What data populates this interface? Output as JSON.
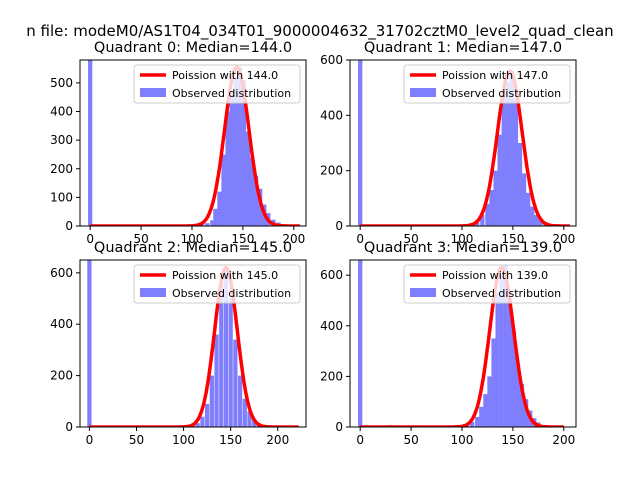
{
  "figure": {
    "suptitle": "n file: modeM0/AS1T04_034T01_9000004632_31702cztM0_level2_quad_clean"
  },
  "colors": {
    "observed": "#7f7ffe",
    "poisson": "#ff0000",
    "axis": "#000000"
  },
  "chart_data": [
    {
      "type": "bar",
      "title": "Quadrant 0: Median=144.0",
      "median": 144.0,
      "xlim": [
        -10,
        212
      ],
      "ylim": [
        0,
        580
      ],
      "xticks": [
        0,
        50,
        100,
        150,
        200
      ],
      "yticks": [
        0,
        100,
        200,
        300,
        400,
        500
      ],
      "legend": {
        "placement": "top-right",
        "entries": [
          "Poission with 144.0",
          "Observed distribution"
        ]
      },
      "series": [
        {
          "name": "Observed distribution",
          "bin_width": 4.2,
          "x": [
            0,
            105,
            110,
            115,
            120,
            123,
            127,
            131,
            135,
            139,
            143,
            147,
            151,
            155,
            159,
            163,
            167,
            171,
            175,
            180,
            185,
            190,
            195,
            200,
            205
          ],
          "values": [
            580,
            3,
            6,
            10,
            20,
            60,
            120,
            250,
            400,
            470,
            520,
            555,
            510,
            330,
            240,
            175,
            130,
            75,
            45,
            22,
            12,
            6,
            3,
            1,
            0
          ]
        },
        {
          "name": "Poission with 144.0",
          "lambda": 144.0,
          "peak": 555,
          "x_range": [
            0,
            206
          ]
        }
      ]
    },
    {
      "type": "bar",
      "title": "Quadrant 1: Median=147.0",
      "median": 147.0,
      "xlim": [
        -10,
        212
      ],
      "ylim": [
        0,
        600
      ],
      "xticks": [
        0,
        50,
        100,
        150,
        200
      ],
      "yticks": [
        0,
        200,
        400,
        600
      ],
      "legend": {
        "placement": "top-right",
        "entries": [
          "Poission with 147.0",
          "Observed distribution"
        ]
      },
      "series": [
        {
          "name": "Observed distribution",
          "bin_width": 4.2,
          "x": [
            0,
            105,
            110,
            115,
            120,
            125,
            129,
            133,
            137,
            141,
            145,
            149,
            153,
            157,
            161,
            165,
            169,
            173,
            177,
            182,
            187,
            192,
            197,
            202
          ],
          "values": [
            600,
            5,
            10,
            20,
            40,
            80,
            130,
            200,
            330,
            470,
            520,
            560,
            460,
            300,
            190,
            120,
            70,
            40,
            25,
            12,
            6,
            3,
            1,
            0
          ]
        },
        {
          "name": "Poission with 147.0",
          "lambda": 147.0,
          "peak": 560,
          "x_range": [
            0,
            206
          ]
        }
      ]
    },
    {
      "type": "bar",
      "title": "Quadrant 2: Median=145.0",
      "median": 145.0,
      "xlim": [
        -10,
        230
      ],
      "ylim": [
        0,
        650
      ],
      "xticks": [
        0,
        50,
        100,
        150,
        200
      ],
      "yticks": [
        0,
        200,
        400,
        600
      ],
      "legend": {
        "placement": "top-right",
        "entries": [
          "Poission with 145.0",
          "Observed distribution"
        ]
      },
      "series": [
        {
          "name": "Observed distribution",
          "bin_width": 4.5,
          "x": [
            0,
            105,
            110,
            115,
            120,
            125,
            130,
            135,
            140,
            145,
            150,
            155,
            160,
            165,
            170,
            175,
            180,
            185,
            190,
            195,
            200
          ],
          "values": [
            650,
            4,
            8,
            15,
            40,
            90,
            200,
            360,
            560,
            610,
            500,
            340,
            200,
            110,
            60,
            30,
            15,
            7,
            3,
            1,
            0
          ]
        },
        {
          "name": "Poission with 145.0",
          "lambda": 145.0,
          "peak": 620,
          "x_range": [
            0,
            222
          ]
        }
      ]
    },
    {
      "type": "bar",
      "title": "Quadrant 3: Median=139.0",
      "median": 139.0,
      "xlim": [
        -10,
        212
      ],
      "ylim": [
        0,
        660
      ],
      "xticks": [
        0,
        50,
        100,
        150,
        200
      ],
      "yticks": [
        0,
        200,
        400,
        600
      ],
      "legend": {
        "placement": "top-right",
        "entries": [
          "Poission with 139.0",
          "Observed distribution"
        ]
      },
      "series": [
        {
          "name": "Observed distribution",
          "bin_width": 4.2,
          "x": [
            0,
            30,
            40,
            55,
            60,
            70,
            85,
            95,
            100,
            105,
            110,
            115,
            119,
            123,
            127,
            131,
            135,
            139,
            143,
            147,
            151,
            155,
            159,
            163,
            167,
            171,
            175,
            180,
            185,
            190,
            195
          ],
          "values": [
            660,
            8,
            5,
            5,
            6,
            3,
            5,
            8,
            4,
            10,
            20,
            40,
            80,
            130,
            200,
            350,
            530,
            600,
            640,
            510,
            380,
            250,
            170,
            110,
            65,
            35,
            18,
            8,
            4,
            2,
            1
          ]
        },
        {
          "name": "Poission with 139.0",
          "lambda": 139.0,
          "peak": 630,
          "x_range": [
            0,
            200
          ]
        }
      ]
    }
  ]
}
